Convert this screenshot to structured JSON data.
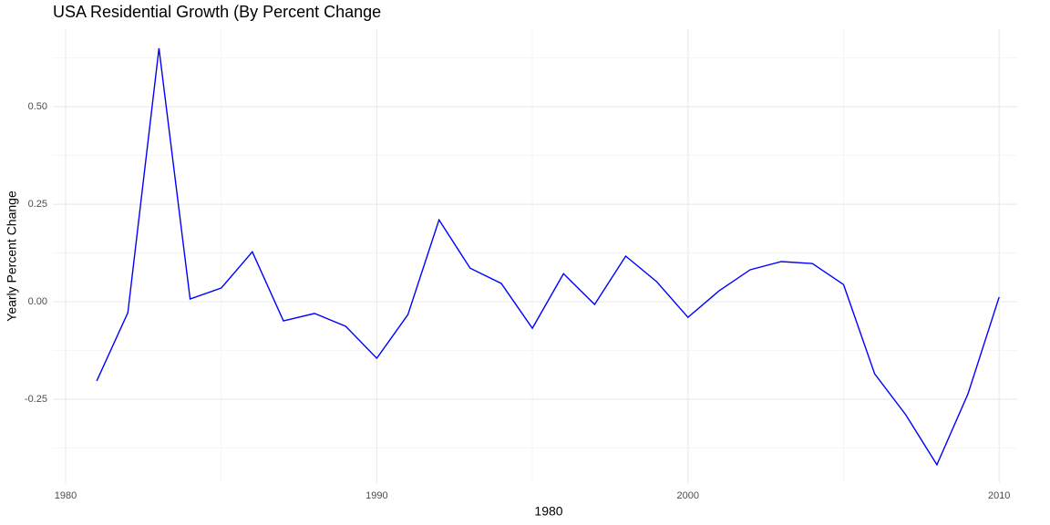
{
  "chart_data": {
    "type": "line",
    "title": "USA Residential Growth (By Percent Change",
    "x_label": "1980",
    "y_label": "Yearly Percent Change",
    "x": [
      1981,
      1982,
      1983,
      1984,
      1985,
      1986,
      1987,
      1988,
      1989,
      1990,
      1991,
      1992,
      1993,
      1994,
      1995,
      1996,
      1997,
      1998,
      1999,
      2000,
      2001,
      2002,
      2003,
      2004,
      2005,
      2006,
      2007,
      2008,
      2009,
      2010
    ],
    "series": [
      {
        "color": "#0000ff",
        "values": [
          -0.203,
          -0.028,
          0.65,
          0.007,
          0.035,
          0.128,
          -0.049,
          -0.03,
          -0.063,
          -0.145,
          -0.033,
          0.21,
          0.086,
          0.047,
          -0.068,
          0.072,
          -0.007,
          0.117,
          0.051,
          -0.04,
          0.028,
          0.082,
          0.103,
          0.098,
          0.044,
          -0.185,
          -0.29,
          -0.418,
          -0.236,
          0.012
        ]
      }
    ],
    "xlim": [
      1979.59,
      2010.58
    ],
    "xticks": [
      1980,
      1990,
      2000,
      2010
    ],
    "ylim": [
      -0.465,
      0.699
    ],
    "yticks": [
      -0.25,
      {
        "value": 0,
        "label": "0.00"
      },
      0.25,
      {
        "value": 0.5,
        "label": "0.50"
      }
    ],
    "grid": true
  }
}
